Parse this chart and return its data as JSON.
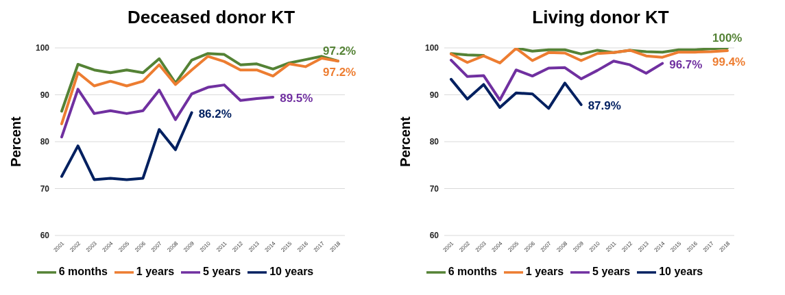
{
  "chart_data": [
    {
      "type": "line",
      "title": "Deceased donor KT",
      "ylabel": "Percent",
      "categories": [
        "2001",
        "2002",
        "2003",
        "2004",
        "2005",
        "2006",
        "2007",
        "2008",
        "2009",
        "2010",
        "2011",
        "2012",
        "2013",
        "2014",
        "2015",
        "2016",
        "2017",
        "2018"
      ],
      "ylim": [
        60,
        100
      ],
      "yticks": [
        60,
        70,
        80,
        90,
        100
      ],
      "grid": "y",
      "legend": "bottom",
      "marker": "none",
      "line_style": "solid",
      "series": [
        {
          "name": "6 months",
          "color": "#548235",
          "values": [
            86.5,
            96.5,
            95.3,
            94.7,
            95.3,
            94.7,
            97.7,
            92.5,
            97.4,
            98.8,
            98.6,
            96.4,
            96.6,
            95.5,
            96.8,
            97.5,
            98.2,
            97.2
          ],
          "value_labels": [
            null,
            null,
            null,
            null,
            null,
            null,
            null,
            null,
            null,
            null,
            null,
            null,
            null,
            null,
            null,
            null,
            null,
            "97.2%"
          ]
        },
        {
          "name": "1 years",
          "color": "#ed7d31",
          "values": [
            83.8,
            94.7,
            91.9,
            92.9,
            91.9,
            92.9,
            96.4,
            92.2,
            95.3,
            98.2,
            97.1,
            95.3,
            95.3,
            94.0,
            96.6,
            96.0,
            97.8,
            97.2
          ],
          "value_labels": [
            null,
            null,
            null,
            null,
            null,
            null,
            null,
            null,
            null,
            null,
            null,
            null,
            null,
            null,
            null,
            null,
            null,
            "97.2%"
          ]
        },
        {
          "name": "5 years",
          "color": "#7030a0",
          "values": [
            81.0,
            91.2,
            86.0,
            86.6,
            86.0,
            86.6,
            91.0,
            84.7,
            90.2,
            91.6,
            92.1,
            88.8,
            89.2,
            89.5,
            null,
            null,
            null,
            null
          ],
          "value_labels": [
            null,
            null,
            null,
            null,
            null,
            null,
            null,
            null,
            null,
            null,
            null,
            null,
            null,
            "89.5%",
            null,
            null,
            null,
            null
          ]
        },
        {
          "name": "10 years",
          "color": "#002060",
          "values": [
            72.6,
            79.1,
            71.9,
            72.2,
            71.9,
            72.2,
            82.6,
            78.3,
            86.2,
            null,
            null,
            null,
            null,
            null,
            null,
            null,
            null,
            null
          ],
          "value_labels": [
            null,
            null,
            null,
            null,
            null,
            null,
            null,
            null,
            "86.2%",
            null,
            null,
            null,
            null,
            null,
            null,
            null,
            null,
            null
          ]
        }
      ]
    },
    {
      "type": "line",
      "title": "Living donor KT",
      "ylabel": "Percent",
      "categories": [
        "2001",
        "2002",
        "2003",
        "2004",
        "2005",
        "2006",
        "2007",
        "2008",
        "2009",
        "2010",
        "2011",
        "2012",
        "2013",
        "2014",
        "2015",
        "2016",
        "2017",
        "2018"
      ],
      "ylim": [
        60,
        100
      ],
      "yticks": [
        60,
        70,
        80,
        90,
        100
      ],
      "grid": "y",
      "legend": "bottom",
      "marker": "none",
      "line_style": "solid",
      "series": [
        {
          "name": "6 months",
          "color": "#548235",
          "values": [
            98.8,
            98.5,
            98.4,
            null,
            100,
            99.3,
            99.6,
            99.6,
            98.7,
            99.5,
            99.0,
            99.5,
            99.2,
            99.1,
            99.6,
            99.6,
            99.8,
            100
          ],
          "value_labels": [
            null,
            null,
            null,
            null,
            null,
            null,
            null,
            null,
            null,
            null,
            null,
            null,
            null,
            null,
            null,
            null,
            null,
            "100%"
          ]
        },
        {
          "name": "1 years",
          "color": "#ed7d31",
          "values": [
            98.7,
            96.9,
            98.3,
            96.8,
            99.9,
            97.3,
            99.0,
            98.9,
            97.3,
            98.8,
            99.0,
            99.5,
            98.3,
            98.0,
            99.1,
            99.1,
            99.2,
            99.4
          ],
          "value_labels": [
            null,
            null,
            null,
            null,
            null,
            null,
            null,
            null,
            null,
            null,
            null,
            null,
            null,
            null,
            null,
            null,
            null,
            "99.4%"
          ]
        },
        {
          "name": "5 years",
          "color": "#7030a0",
          "values": [
            97.4,
            93.9,
            94.1,
            88.9,
            95.3,
            94.0,
            95.7,
            95.8,
            93.4,
            95.2,
            97.2,
            96.4,
            94.6,
            96.7,
            null,
            null,
            null,
            null
          ],
          "value_labels": [
            null,
            null,
            null,
            null,
            null,
            null,
            null,
            null,
            null,
            null,
            null,
            null,
            null,
            "96.7%",
            null,
            null,
            null,
            null
          ]
        },
        {
          "name": "10 years",
          "color": "#002060",
          "values": [
            93.3,
            89.1,
            92.2,
            87.3,
            90.4,
            90.2,
            87.1,
            92.5,
            87.9,
            null,
            null,
            null,
            null,
            null,
            null,
            null,
            null,
            null
          ],
          "value_labels": [
            null,
            null,
            null,
            null,
            null,
            null,
            null,
            null,
            "87.9%",
            null,
            null,
            null,
            null,
            null,
            null,
            null,
            null,
            null
          ]
        }
      ]
    }
  ]
}
